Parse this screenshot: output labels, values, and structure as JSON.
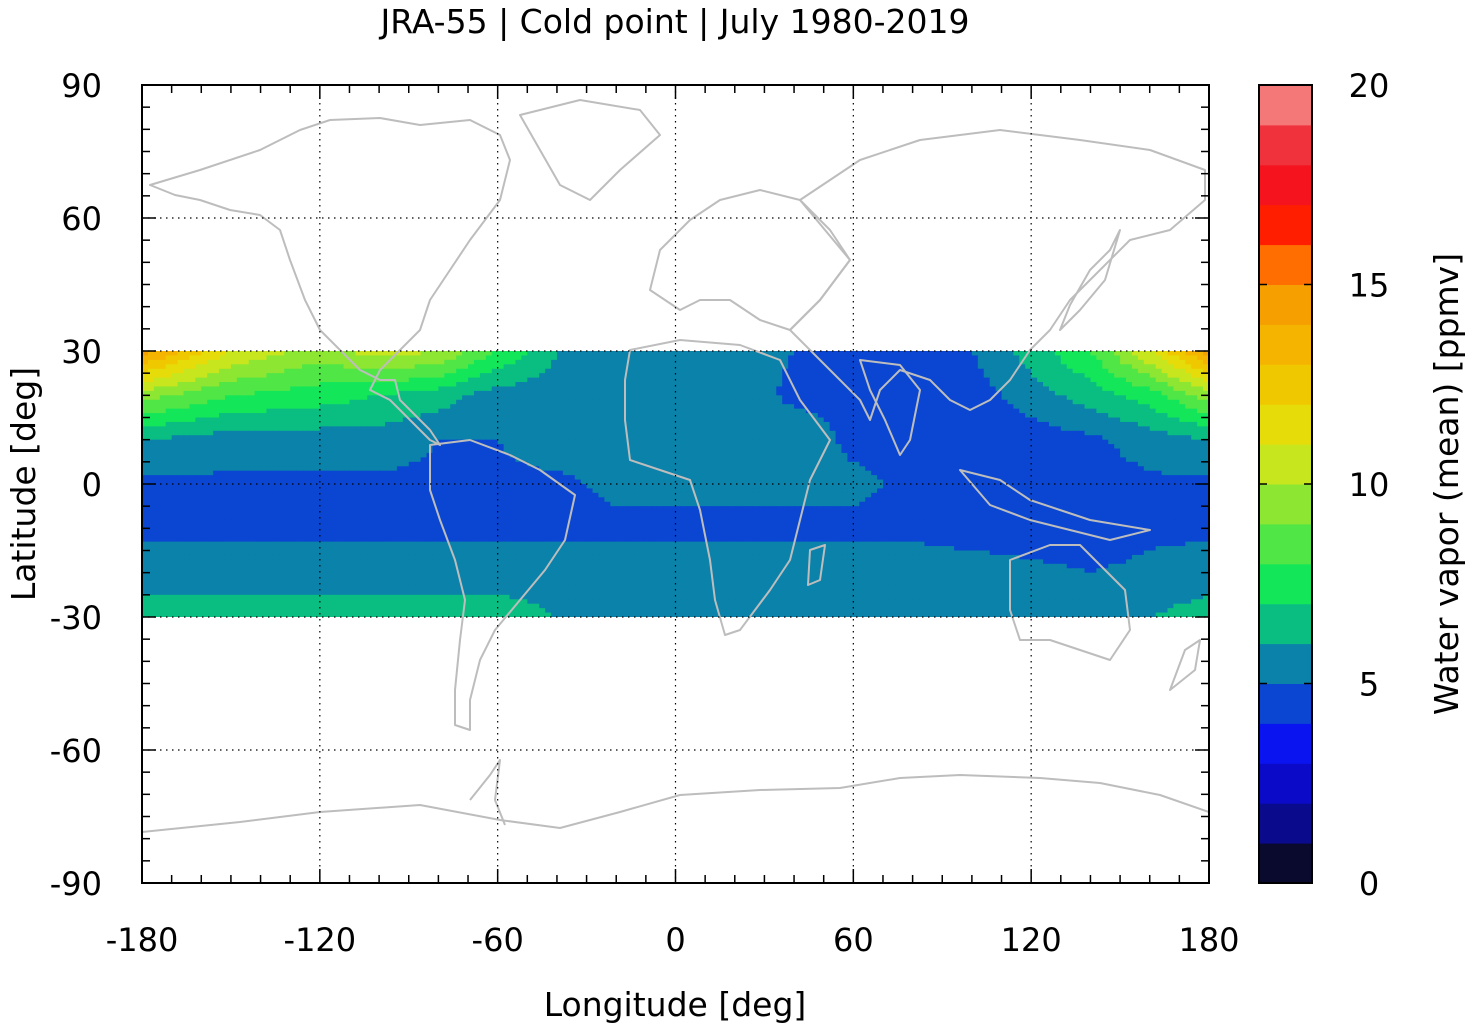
{
  "chart_data": {
    "type": "heatmap",
    "title": "JRA-55 | Cold point | July 1980-2019",
    "xlabel": "Longitude [deg]",
    "ylabel": "Latitude [deg]",
    "colorbar_label": "Water vapor (mean) [ppmv]",
    "xlim": [
      -180,
      180
    ],
    "ylim": [
      -90,
      90
    ],
    "data_lat_range": [
      -30,
      30
    ],
    "x_ticks": [
      -180,
      -120,
      -60,
      0,
      60,
      120,
      180
    ],
    "x_tick_labels": [
      "-180",
      "-120",
      "-60",
      "0",
      "60",
      "120",
      "180"
    ],
    "y_ticks": [
      90,
      60,
      30,
      0,
      -30,
      -60,
      -90
    ],
    "y_tick_labels": [
      "90",
      "60",
      "30",
      "0",
      "-30",
      "-60",
      "-90"
    ],
    "grid": true,
    "colorbar": {
      "range": [
        0,
        20
      ],
      "ticks": [
        0,
        5,
        10,
        15,
        20
      ],
      "tick_labels": [
        "0",
        "5",
        "10",
        "15",
        "20"
      ],
      "levels": [
        0,
        1,
        2,
        3,
        4,
        5,
        6,
        7,
        8,
        9,
        10,
        11,
        12,
        13,
        14,
        15,
        16,
        17,
        18,
        19,
        20
      ],
      "colors": [
        "#0a0a2e",
        "#0a0a8c",
        "#0a0ac8",
        "#0a14f0",
        "#0a46d2",
        "#0a82aa",
        "#0abe82",
        "#14e65a",
        "#50e646",
        "#8ce632",
        "#c8e61e",
        "#e6dc0a",
        "#f0c800",
        "#f5b400",
        "#f5a000",
        "#ff6e00",
        "#ff1e00",
        "#f5141e",
        "#f0323c",
        "#f57878",
        "#ffc8c8"
      ]
    },
    "profile_note": "",
    "zonal_profile": {
      "lon": [
        -180,
        -150,
        -120,
        -100,
        -80,
        -60,
        -40,
        -20,
        0,
        20,
        40,
        60,
        80,
        100,
        120,
        140,
        160,
        180
      ],
      "lat": [
        30,
        20,
        10,
        0,
        -10,
        -20,
        -30
      ],
      "values": [
        [
          14.5,
          11.0,
          9.5,
          10.5,
          10.0,
          8.0,
          6.0,
          5.5,
          5.5,
          5.5,
          5.0,
          5.0,
          5.0,
          5.0,
          6.5,
          8.0,
          11.0,
          14.5
        ],
        [
          9.5,
          8.0,
          7.5,
          7.0,
          6.5,
          5.5,
          5.5,
          5.5,
          5.5,
          5.5,
          4.8,
          4.8,
          4.5,
          4.5,
          5.5,
          6.5,
          7.5,
          9.5
        ],
        [
          6.0,
          5.5,
          5.5,
          5.5,
          5.0,
          5.0,
          5.5,
          5.5,
          5.5,
          5.5,
          5.5,
          4.8,
          4.5,
          4.5,
          4.5,
          4.8,
          5.5,
          6.0
        ],
        [
          4.8,
          4.8,
          4.8,
          4.8,
          4.8,
          4.8,
          4.8,
          5.2,
          5.2,
          5.2,
          5.2,
          5.2,
          4.8,
          4.5,
          4.5,
          4.5,
          4.8,
          4.8
        ],
        [
          4.8,
          4.8,
          4.8,
          4.8,
          4.8,
          4.8,
          4.8,
          4.8,
          4.8,
          4.8,
          4.8,
          4.8,
          4.8,
          4.5,
          4.5,
          4.5,
          4.8,
          4.8
        ],
        [
          5.5,
          5.5,
          5.5,
          5.5,
          5.5,
          5.5,
          5.5,
          5.5,
          5.5,
          5.5,
          5.5,
          5.5,
          5.5,
          5.5,
          5.2,
          5.0,
          5.2,
          5.5
        ],
        [
          6.5,
          6.5,
          6.5,
          6.5,
          6.5,
          6.5,
          6.0,
          6.0,
          5.5,
          5.5,
          5.5,
          5.5,
          5.5,
          5.5,
          5.5,
          5.5,
          6.0,
          6.5
        ]
      ]
    }
  }
}
